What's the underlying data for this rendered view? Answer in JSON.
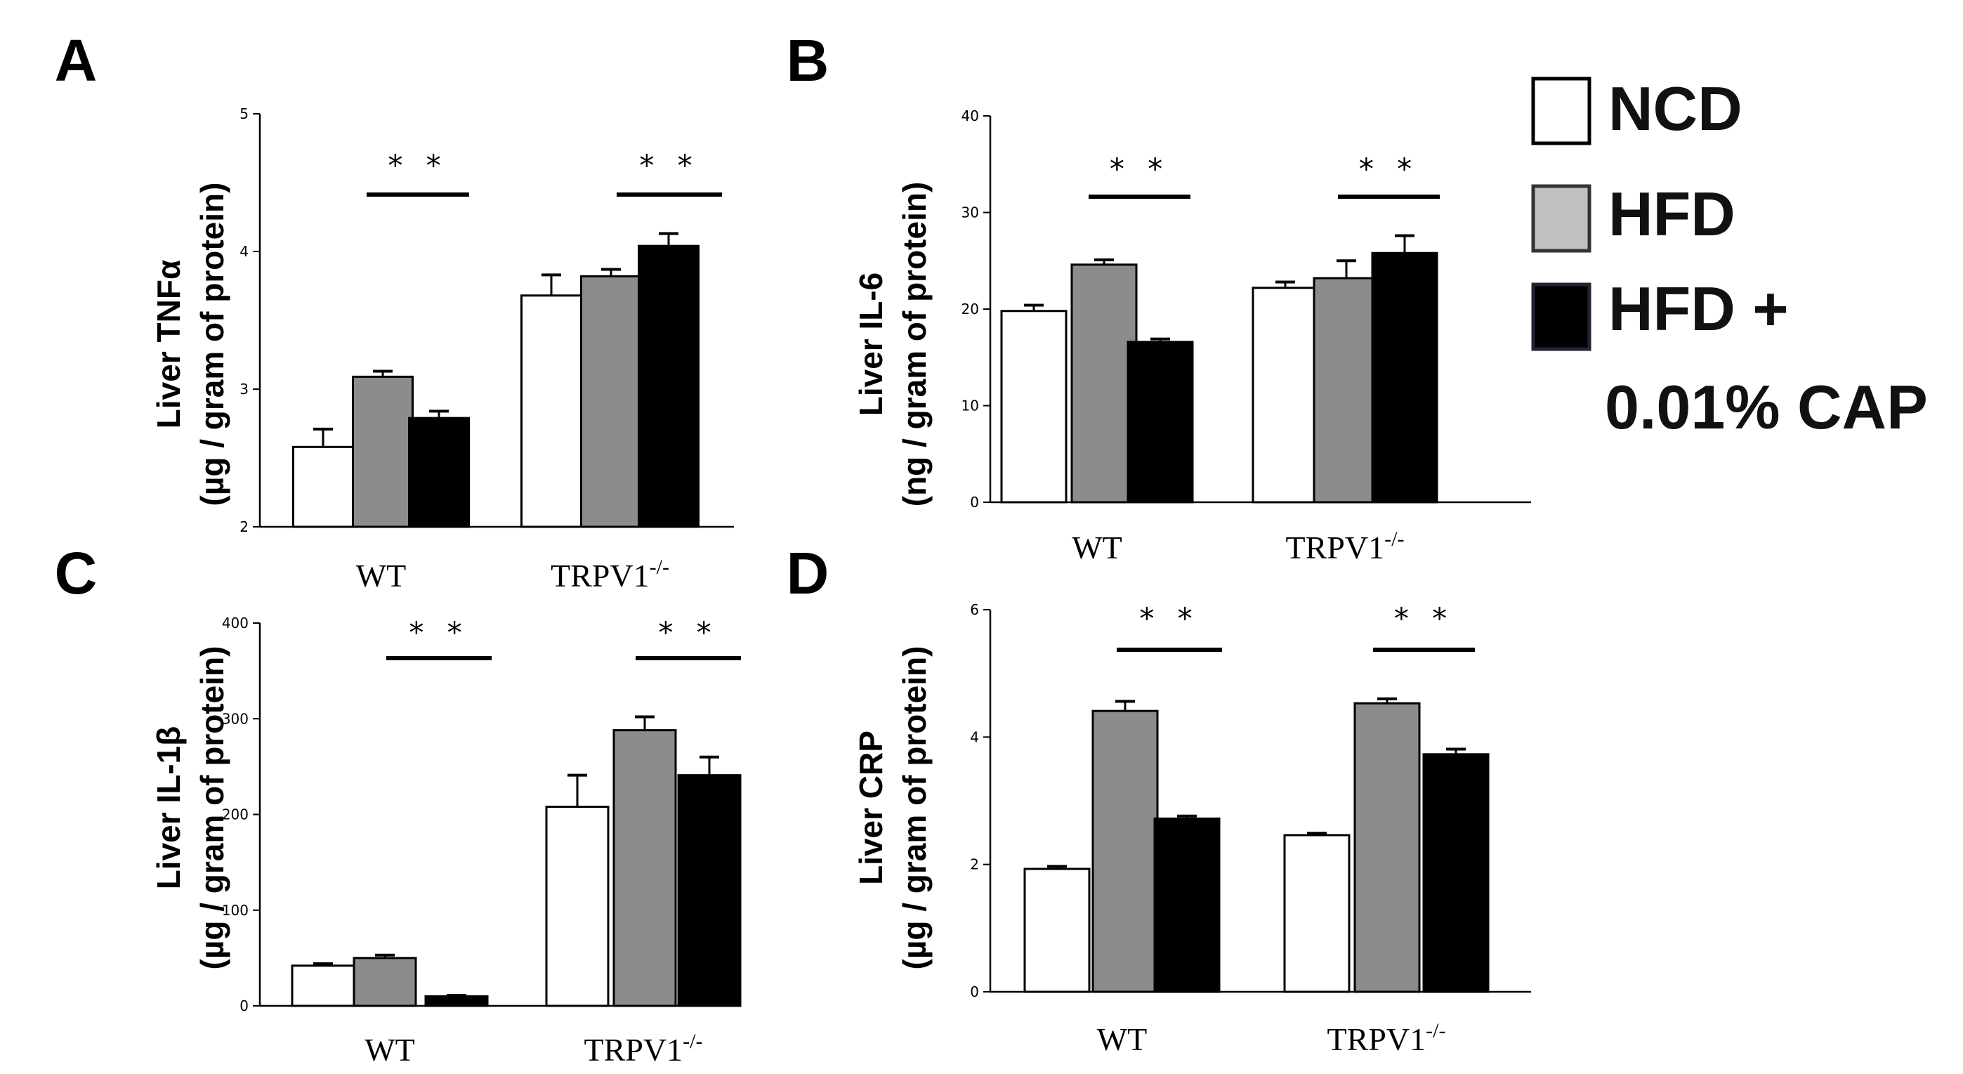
{
  "legend": [
    {
      "label": "NCD",
      "color": "#ffffff"
    },
    {
      "label": "HFD",
      "color": "#c0c0c0"
    },
    {
      "label": "HFD +",
      "color": "#000000"
    },
    {
      "label": "0.01% CAP",
      "color": null
    }
  ],
  "chart_data": [
    {
      "panel": "A",
      "type": "bar",
      "ylabel_line1": "Liver TNFα",
      "ylabel_line2": "(µg / gram of protein)",
      "ylim": [
        2,
        5
      ],
      "yticks": [
        "2",
        "3",
        "4",
        "5"
      ],
      "categories": [
        "WT",
        "TRPV1"
      ],
      "category_superscript": [
        "",
        "-/-"
      ],
      "series": [
        {
          "name": "NCD",
          "values": [
            2.58,
            3.68
          ],
          "errors": [
            0.13,
            0.15
          ],
          "color": "#ffffff"
        },
        {
          "name": "HFD",
          "values": [
            3.09,
            3.82
          ],
          "errors": [
            0.04,
            0.05
          ],
          "color": "#8c8c8c"
        },
        {
          "name": "HFD + 0.01% CAP",
          "values": [
            2.79,
            4.04
          ],
          "errors": [
            0.05,
            0.09
          ],
          "color": "#000000"
        }
      ],
      "significance": [
        "* *",
        "* *"
      ]
    },
    {
      "panel": "B",
      "type": "bar",
      "ylabel_line1": "Liver IL-6",
      "ylabel_line2": "(ng / gram of protein)",
      "ylim": [
        0,
        40
      ],
      "yticks": [
        "0",
        "10",
        "20",
        "30",
        "40"
      ],
      "categories": [
        "WT",
        "TRPV1"
      ],
      "category_superscript": [
        "",
        "-/-"
      ],
      "series": [
        {
          "name": "NCD",
          "values": [
            19.8,
            22.2
          ],
          "errors": [
            0.6,
            0.6
          ],
          "color": "#ffffff"
        },
        {
          "name": "HFD",
          "values": [
            24.6,
            23.2
          ],
          "errors": [
            0.5,
            1.8
          ],
          "color": "#8c8c8c"
        },
        {
          "name": "HFD + 0.01% CAP",
          "values": [
            16.6,
            25.8
          ],
          "errors": [
            0.3,
            1.8
          ],
          "color": "#000000"
        }
      ],
      "significance": [
        "* *",
        "* *"
      ]
    },
    {
      "panel": "C",
      "type": "bar",
      "ylabel_line1": "Liver IL-1β",
      "ylabel_line2": "(µg / gram of protein)",
      "ylim": [
        0,
        400
      ],
      "yticks": [
        "0",
        "100",
        "200",
        "300",
        "400"
      ],
      "categories": [
        "WT",
        "TRPV1"
      ],
      "category_superscript": [
        "",
        "-/-"
      ],
      "series": [
        {
          "name": "NCD",
          "values": [
            42,
            208
          ],
          "errors": [
            2,
            33
          ],
          "color": "#ffffff"
        },
        {
          "name": "HFD",
          "values": [
            50,
            288
          ],
          "errors": [
            3,
            14
          ],
          "color": "#8c8c8c"
        },
        {
          "name": "HFD + 0.01% CAP",
          "values": [
            10,
            241
          ],
          "errors": [
            1,
            19
          ],
          "color": "#000000"
        }
      ],
      "significance": [
        "* *",
        "* *"
      ]
    },
    {
      "panel": "D",
      "type": "bar",
      "ylabel_line1": "Liver CRP",
      "ylabel_line2": "(µg / gram of protein)",
      "ylim": [
        0,
        6
      ],
      "yticks": [
        "0",
        "2",
        "4",
        "6"
      ],
      "categories": [
        "WT",
        "TRPV1"
      ],
      "category_superscript": [
        "",
        "-/-"
      ],
      "series": [
        {
          "name": "NCD",
          "values": [
            1.93,
            2.46
          ],
          "errors": [
            0.04,
            0.03
          ],
          "color": "#ffffff"
        },
        {
          "name": "HFD",
          "values": [
            4.41,
            4.53
          ],
          "errors": [
            0.15,
            0.07
          ],
          "color": "#8c8c8c"
        },
        {
          "name": "HFD + 0.01% CAP",
          "values": [
            2.72,
            3.73
          ],
          "errors": [
            0.04,
            0.08
          ],
          "color": "#000000"
        }
      ],
      "significance": [
        "* *",
        "* *"
      ]
    }
  ]
}
